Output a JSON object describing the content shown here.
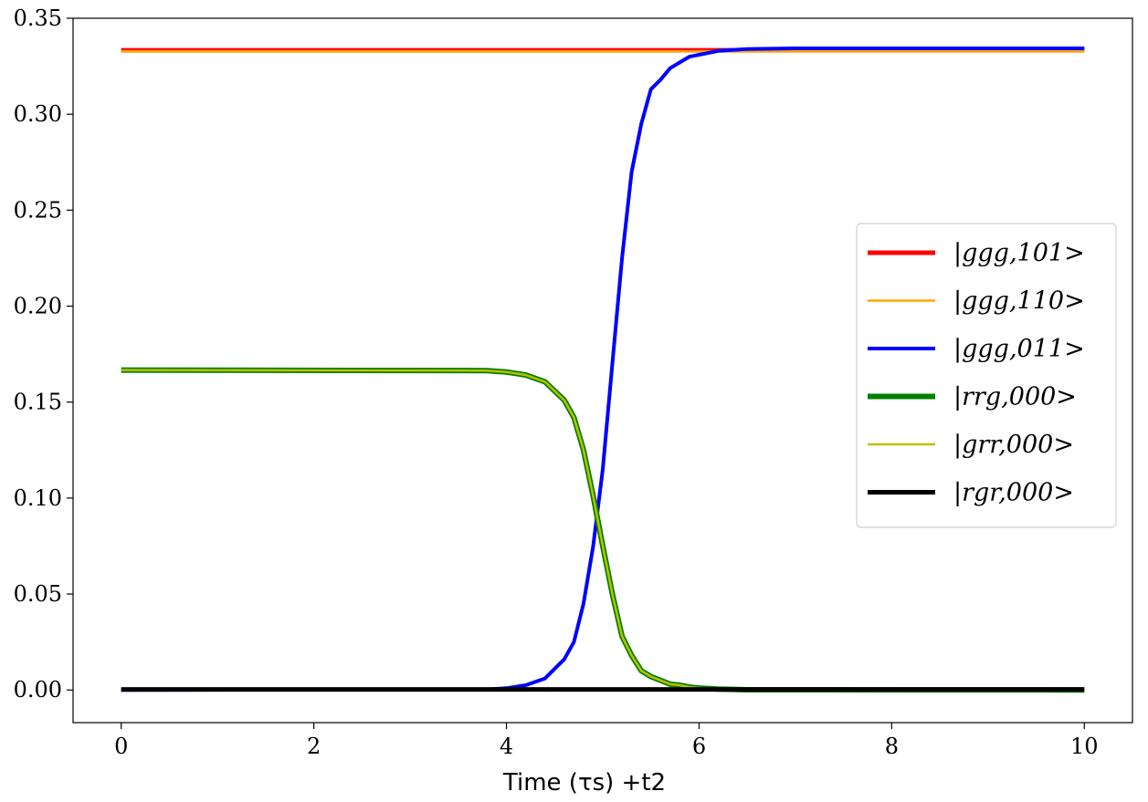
{
  "chart_data": {
    "type": "line",
    "title": "",
    "xlabel": "Time (τs) +t2",
    "ylabel": "",
    "xlim": [
      -0.5,
      10.5
    ],
    "ylim": [
      -0.017,
      0.35
    ],
    "xticks": [
      0,
      2,
      4,
      6,
      8,
      10
    ],
    "xtick_labels": [
      "0",
      "2",
      "4",
      "6",
      "8",
      "10"
    ],
    "yticks": [
      0.0,
      0.05,
      0.1,
      0.15,
      0.2,
      0.25,
      0.3,
      0.35
    ],
    "ytick_labels": [
      "0.00",
      "0.05",
      "0.10",
      "0.15",
      "0.20",
      "0.25",
      "0.30",
      "0.35"
    ],
    "grid": false,
    "legend_position": "center-right",
    "series": [
      {
        "name": "|ggg,101>",
        "color": "#ff0000",
        "width": 5,
        "x": [
          0,
          10
        ],
        "y": [
          0.3333,
          0.3333
        ]
      },
      {
        "name": "|ggg,110>",
        "color": "#ffa500",
        "width": 2.5,
        "x": [
          0,
          10
        ],
        "y": [
          0.3328,
          0.3328
        ]
      },
      {
        "name": "|ggg,011>",
        "color": "#0000ff",
        "width": 4,
        "x": [
          0,
          3.8,
          4.0,
          4.2,
          4.4,
          4.6,
          4.7,
          4.8,
          4.9,
          5.0,
          5.1,
          5.2,
          5.3,
          5.4,
          5.5,
          5.6,
          5.7,
          5.8,
          5.9,
          6.0,
          6.2,
          6.5,
          7.0,
          10
        ],
        "y": [
          0.0,
          0.0003,
          0.0009,
          0.0025,
          0.006,
          0.016,
          0.025,
          0.045,
          0.075,
          0.115,
          0.17,
          0.225,
          0.27,
          0.295,
          0.313,
          0.318,
          0.324,
          0.327,
          0.33,
          0.331,
          0.333,
          0.334,
          0.3343,
          0.3343
        ]
      },
      {
        "name": "|rrg,000>",
        "color": "#008000",
        "width": 6,
        "x": [
          0,
          3.8,
          4.0,
          4.2,
          4.4,
          4.6,
          4.7,
          4.8,
          4.9,
          5.0,
          5.1,
          5.2,
          5.3,
          5.4,
          5.5,
          5.6,
          5.7,
          5.8,
          5.9,
          6.0,
          6.2,
          6.5,
          10
        ],
        "y": [
          0.1667,
          0.1664,
          0.1657,
          0.1641,
          0.1606,
          0.151,
          0.142,
          0.125,
          0.101,
          0.075,
          0.05,
          0.028,
          0.018,
          0.01,
          0.007,
          0.005,
          0.003,
          0.0025,
          0.0015,
          0.001,
          0.0005,
          0.0001,
          0.0
        ]
      },
      {
        "name": "|grr,000>",
        "color": "#bfbf00",
        "width": 2.5,
        "x": [
          0,
          3.8,
          4.0,
          4.2,
          4.4,
          4.6,
          4.7,
          4.8,
          4.9,
          5.0,
          5.1,
          5.2,
          5.3,
          5.4,
          5.5,
          5.6,
          5.7,
          5.8,
          5.9,
          6.0,
          6.2,
          6.5,
          10
        ],
        "y": [
          0.1667,
          0.1664,
          0.1657,
          0.1641,
          0.1606,
          0.151,
          0.142,
          0.125,
          0.101,
          0.075,
          0.05,
          0.028,
          0.018,
          0.01,
          0.007,
          0.005,
          0.003,
          0.0025,
          0.0015,
          0.001,
          0.0005,
          0.0001,
          0.0
        ]
      },
      {
        "name": "|rgr,000>",
        "color": "#000000",
        "width": 5,
        "x": [
          0,
          10
        ],
        "y": [
          0.0003,
          0.0003
        ]
      }
    ]
  }
}
